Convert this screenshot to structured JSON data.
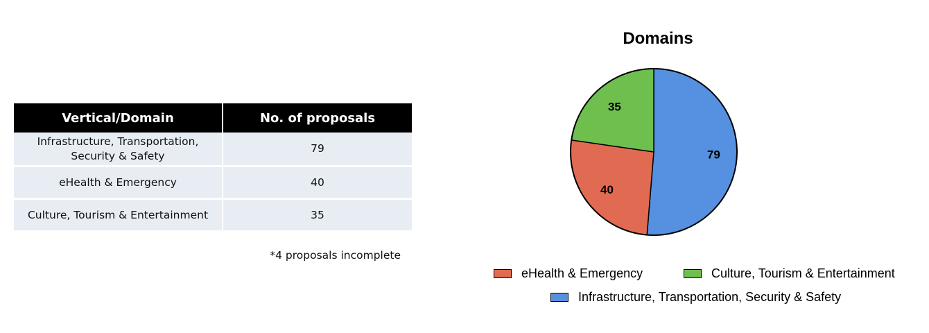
{
  "table": {
    "headers": [
      "Vertical/Domain",
      "No. of proposals"
    ],
    "rows": [
      {
        "domain_line1": "Infrastructure, Transportation,",
        "domain_line2": "Security & Safety",
        "count": "79"
      },
      {
        "domain_line1": "eHealth & Emergency",
        "domain_line2": "",
        "count": "40"
      },
      {
        "domain_line1": "Culture, Tourism & Entertainment",
        "domain_line2": "",
        "count": "35"
      }
    ],
    "footnote": "*4 proposals incomplete"
  },
  "chart_data": {
    "type": "pie",
    "title": "Domains",
    "slices": [
      {
        "label": "Infrastructure, Transportation, Security & Safety",
        "value": 79,
        "color": "#5591e0"
      },
      {
        "label": "eHealth & Emergency",
        "value": 40,
        "color": "#e06b52"
      },
      {
        "label": "Culture, Tourism & Entertainment",
        "value": 35,
        "color": "#6fbf4f"
      }
    ],
    "legend": {
      "placement": "bottom",
      "items": [
        {
          "label": "eHealth & Emergency",
          "color": "#e06b52"
        },
        {
          "label": "Culture, Tourism & Entertainment",
          "color": "#6fbf4f"
        },
        {
          "label": "Infrastructure, Transportation, Security & Safety",
          "color": "#5591e0"
        }
      ]
    }
  }
}
